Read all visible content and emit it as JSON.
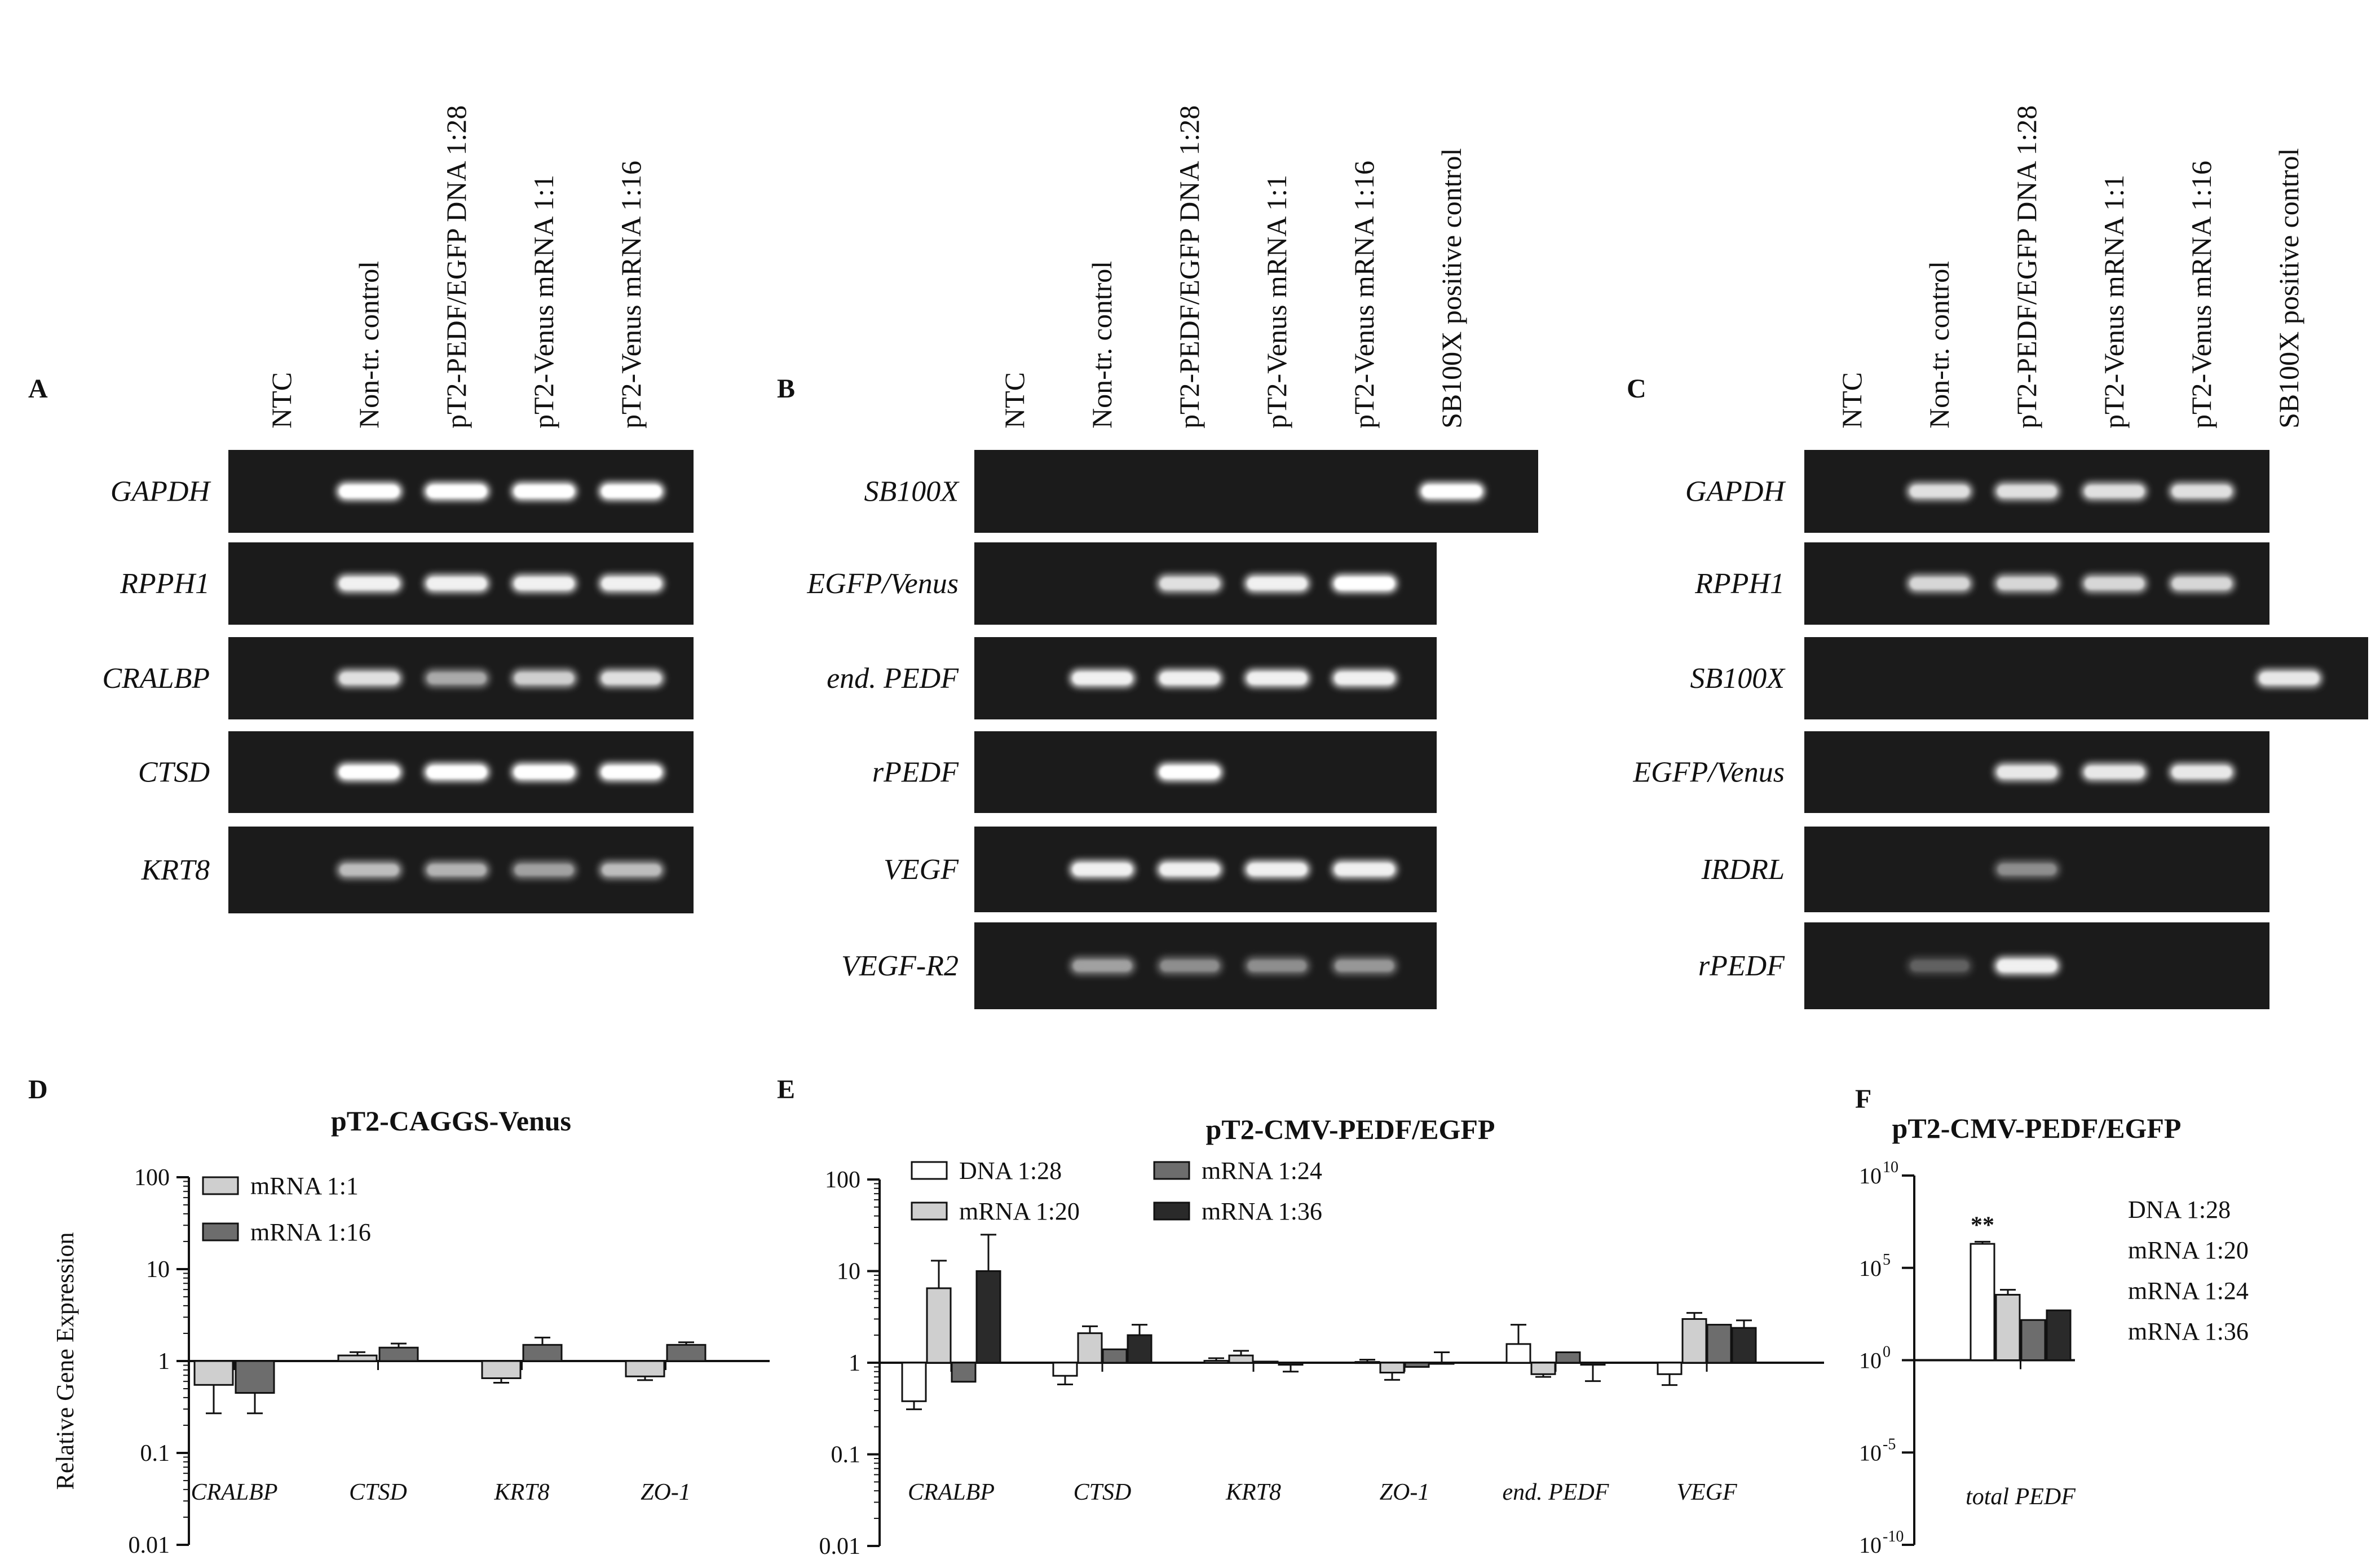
{
  "gels": [
    {
      "letter": "A",
      "lanes": [
        "NTC",
        "Non-tr. control",
        "pT2-PEDF/EGFP DNA 1:28",
        "pT2-Venus mRNA 1:1",
        "pT2-Venus mRNA 1:16"
      ],
      "genes": [
        {
          "name": "GAPDH",
          "bands": [
            0,
            1,
            1,
            1,
            1
          ]
        },
        {
          "name": "RPPH1",
          "bands": [
            0,
            0.9,
            0.9,
            0.9,
            0.9
          ]
        },
        {
          "name": "CRALBP",
          "bands": [
            0,
            0.8,
            0.5,
            0.7,
            0.8
          ]
        },
        {
          "name": "CTSD",
          "bands": [
            0,
            1,
            1,
            1,
            1
          ]
        },
        {
          "name": "KRT8",
          "bands": [
            0,
            0.6,
            0.55,
            0.45,
            0.6
          ]
        }
      ]
    },
    {
      "letter": "B",
      "lanes": [
        "NTC",
        "Non-tr. control",
        "pT2-PEDF/EGFP DNA 1:28",
        "pT2-Venus mRNA 1:1",
        "pT2-Venus mRNA 1:16",
        "SB100X positive control"
      ],
      "genes": [
        {
          "name": "SB100X",
          "bands": [
            0,
            0,
            0,
            0,
            0,
            1
          ]
        },
        {
          "name": "EGFP/Venus",
          "bands": [
            0,
            0,
            0.8,
            0.9,
            1
          ]
        },
        {
          "name": "end. PEDF",
          "bands": [
            0,
            0.9,
            0.9,
            0.9,
            0.9
          ]
        },
        {
          "name": "rPEDF",
          "bands": [
            0,
            0,
            1,
            0,
            0
          ]
        },
        {
          "name": "VEGF",
          "bands": [
            0,
            0.9,
            0.9,
            0.9,
            0.9
          ]
        },
        {
          "name": "VEGF-R2",
          "bands": [
            0,
            0.45,
            0.35,
            0.35,
            0.4
          ]
        }
      ]
    },
    {
      "letter": "C",
      "lanes": [
        "NTC",
        "Non-tr. control",
        "pT2-PEDF/EGFP DNA 1:28",
        "pT2-Venus mRNA 1:1",
        "pT2-Venus mRNA 1:16",
        "SB100X positive control"
      ],
      "genes": [
        {
          "name": "GAPDH",
          "bands": [
            0,
            0.8,
            0.8,
            0.8,
            0.8
          ]
        },
        {
          "name": "RPPH1",
          "bands": [
            0,
            0.75,
            0.75,
            0.75,
            0.75
          ]
        },
        {
          "name": "SB100X",
          "bands": [
            0,
            0,
            0,
            0,
            0,
            0.85
          ]
        },
        {
          "name": "EGFP/Venus",
          "bands": [
            0,
            0,
            0.85,
            0.85,
            0.85
          ]
        },
        {
          "name": "IRDRL",
          "bands": [
            0,
            0,
            0.35,
            0,
            0
          ]
        },
        {
          "name": "rPEDF",
          "bands": [
            0,
            0.1,
            0.9,
            0,
            0
          ]
        }
      ]
    }
  ],
  "chart_data": [
    {
      "panel": "D",
      "type": "bar",
      "title": "pT2-CAGGS-Venus",
      "ylabel": "Relative Gene Expression",
      "yscale": "log",
      "ylim": [
        0.01,
        100
      ],
      "yticks": [
        "100",
        "10",
        "1",
        "0.1",
        "0.01"
      ],
      "categories": [
        "CRALBP",
        "CTSD",
        "KRT8",
        "ZO-1"
      ],
      "series": [
        {
          "name": "mRNA 1:1",
          "color": "#cfcfcf",
          "values": [
            0.55,
            1.15,
            0.65,
            0.68
          ],
          "errors": [
            0.27,
            1.25,
            0.58,
            0.62
          ]
        },
        {
          "name": "mRNA 1:16",
          "color": "#6d6d6d",
          "values": [
            0.45,
            1.4,
            1.5,
            1.5
          ],
          "errors": [
            0.27,
            1.55,
            1.8,
            1.6
          ]
        }
      ]
    },
    {
      "panel": "E",
      "type": "bar",
      "title": "pT2-CMV-PEDF/EGFP",
      "yscale": "log",
      "ylim": [
        0.01,
        100
      ],
      "yticks": [
        "100",
        "10",
        "1",
        "0.1",
        "0.01"
      ],
      "categories": [
        "CRALBP",
        "CTSD",
        "KRT8",
        "ZO-1",
        "end. PEDF",
        "VEGF"
      ],
      "series": [
        {
          "name": "DNA 1:28",
          "color": "#ffffff",
          "values": [
            0.38,
            0.72,
            1.05,
            1.02,
            1.6,
            0.75
          ],
          "errors": [
            0.31,
            0.58,
            1.12,
            1.08,
            2.6,
            0.57
          ]
        },
        {
          "name": "mRNA 1:20",
          "color": "#cfcfcf",
          "values": [
            6.5,
            2.1,
            1.2,
            0.78,
            0.75,
            3.0
          ],
          "errors": [
            13,
            2.5,
            1.35,
            0.65,
            0.7,
            3.5
          ]
        },
        {
          "name": "mRNA 1:24",
          "color": "#6d6d6d",
          "values": [
            0.62,
            1.4,
            1.03,
            0.9,
            1.3,
            2.6
          ],
          "errors": [
            0.62,
            1.4,
            1.03,
            0.9,
            1.3,
            2.6
          ]
        },
        {
          "name": "mRNA 1:36",
          "color": "#2a2a2a",
          "values": [
            10,
            2.0,
            0.95,
            0.98,
            0.95,
            2.4
          ],
          "errors": [
            25,
            2.6,
            0.8,
            1.3,
            0.63,
            2.9
          ]
        }
      ]
    },
    {
      "panel": "F",
      "type": "bar",
      "title": "pT2-CMV-PEDF/EGFP",
      "yscale": "log",
      "ylim": [
        1e-10,
        10000000000.0
      ],
      "yticks": [
        "10",
        "10",
        "10",
        "10",
        "10"
      ],
      "ytick_exponents": [
        "10",
        "5",
        "0",
        "-5",
        "-10"
      ],
      "categories": [
        "total PEDF"
      ],
      "annotation": "**",
      "series": [
        {
          "name": "DNA 1:28",
          "color": "#ffffff",
          "values": [
            2000000
          ],
          "errors": [
            2600000
          ]
        },
        {
          "name": "mRNA 1:20",
          "color": "#cfcfcf",
          "values": [
            3500
          ],
          "errors": [
            6500
          ]
        },
        {
          "name": "mRNA 1:24",
          "color": "#6d6d6d",
          "values": [
            150
          ],
          "errors": [
            150
          ]
        },
        {
          "name": "mRNA 1:36",
          "color": "#2a2a2a",
          "values": [
            500
          ],
          "errors": [
            500
          ]
        }
      ]
    }
  ]
}
